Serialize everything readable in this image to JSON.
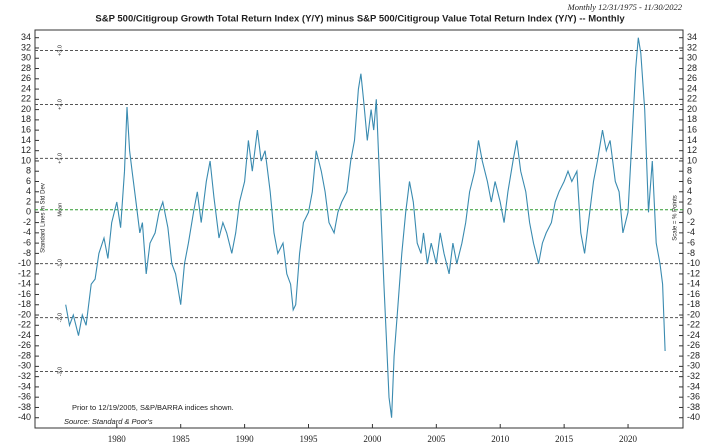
{
  "chart_data": {
    "type": "line",
    "title": "S&P 500/Citigroup Growth Total Return Index (Y/Y) minus S&P 500/Citigroup Value Total Return Index (Y/Y) -- Monthly",
    "subtitle": "Monthly 12/31/1975 - 11/30/2022",
    "y_label_left": "Standard Lines in Std Dev",
    "y_label_right": "Scale = % Points",
    "notes": [
      "Prior to 12/19/2005, S&P/BARRA indices shown.",
      "Source: Standard & Poor's"
    ],
    "xlim": [
      1973.6,
      2024.3
    ],
    "xticks": [
      1980,
      1985,
      1990,
      1995,
      2000,
      2005,
      2010,
      2015,
      2020
    ],
    "ylim": [
      -42,
      35.5
    ],
    "yticks": [
      -40,
      -38,
      -36,
      -34,
      -32,
      -30,
      -28,
      -26,
      -24,
      -22,
      -20,
      -18,
      -16,
      -14,
      -12,
      -10,
      -8,
      -6,
      -4,
      -2,
      0,
      2,
      4,
      6,
      8,
      10,
      12,
      14,
      16,
      18,
      20,
      22,
      24,
      26,
      28,
      30,
      32,
      34
    ],
    "reference_lines": [
      {
        "value": 31.5,
        "label": "+3.0",
        "color": "#555555"
      },
      {
        "value": 21,
        "label": "+2.0",
        "color": "#555555"
      },
      {
        "value": 10.5,
        "label": "+1.0",
        "color": "#555555"
      },
      {
        "value": 0.5,
        "label": "Mean",
        "color": "#2e9a2e"
      },
      {
        "value": -10,
        "label": "-1.0",
        "color": "#555555"
      },
      {
        "value": -20.5,
        "label": "-2.0",
        "color": "#555555"
      },
      {
        "value": -31,
        "label": "-3.0",
        "color": "#555555"
      }
    ],
    "series": [
      {
        "name": "Growth minus Value",
        "color": "#3a8bb0",
        "x": [
          1976.0,
          1976.3,
          1976.6,
          1977.0,
          1977.3,
          1977.6,
          1978.0,
          1978.3,
          1978.6,
          1979.0,
          1979.3,
          1979.6,
          1980.0,
          1980.3,
          1980.6,
          1980.8,
          1981.0,
          1981.2,
          1981.5,
          1981.8,
          1982.0,
          1982.3,
          1982.6,
          1983.0,
          1983.3,
          1983.6,
          1984.0,
          1984.3,
          1984.6,
          1985.0,
          1985.3,
          1985.6,
          1986.0,
          1986.3,
          1986.6,
          1987.0,
          1987.3,
          1987.6,
          1988.0,
          1988.3,
          1988.6,
          1989.0,
          1989.3,
          1989.6,
          1990.0,
          1990.3,
          1990.6,
          1991.0,
          1991.3,
          1991.6,
          1992.0,
          1992.3,
          1992.6,
          1993.0,
          1993.3,
          1993.6,
          1993.8,
          1994.0,
          1994.3,
          1994.6,
          1995.0,
          1995.3,
          1995.6,
          1996.0,
          1996.3,
          1996.6,
          1997.0,
          1997.3,
          1997.6,
          1998.0,
          1998.3,
          1998.6,
          1998.9,
          1999.1,
          1999.3,
          1999.6,
          1999.9,
          2000.1,
          2000.3,
          2000.6,
          2000.9,
          2001.1,
          2001.3,
          2001.5,
          2001.7,
          2002.0,
          2002.3,
          2002.6,
          2002.9,
          2003.2,
          2003.5,
          2003.8,
          2004.0,
          2004.3,
          2004.6,
          2005.0,
          2005.3,
          2005.6,
          2006.0,
          2006.3,
          2006.6,
          2007.0,
          2007.3,
          2007.6,
          2008.0,
          2008.3,
          2008.6,
          2009.0,
          2009.3,
          2009.6,
          2010.0,
          2010.3,
          2010.6,
          2011.0,
          2011.3,
          2011.6,
          2012.0,
          2012.3,
          2012.6,
          2013.0,
          2013.3,
          2013.6,
          2014.0,
          2014.3,
          2014.6,
          2015.0,
          2015.3,
          2015.6,
          2016.0,
          2016.3,
          2016.6,
          2017.0,
          2017.3,
          2017.6,
          2018.0,
          2018.3,
          2018.6,
          2019.0,
          2019.3,
          2019.6,
          2020.0,
          2020.3,
          2020.6,
          2020.8,
          2021.0,
          2021.3,
          2021.6,
          2021.9,
          2022.2,
          2022.5,
          2022.7,
          2022.9
        ],
        "values": [
          -18,
          -22,
          -20,
          -24,
          -20,
          -22,
          -14,
          -13,
          -8,
          -5,
          -9,
          -2,
          2,
          -3,
          8,
          20.5,
          12,
          8,
          2,
          -4,
          -2,
          -12,
          -6,
          -4,
          0,
          2,
          -3,
          -10,
          -12,
          -18,
          -10,
          -6,
          0,
          4,
          -2,
          6,
          10,
          3,
          -5,
          -2,
          -4,
          -8,
          -4,
          2,
          6,
          14,
          8,
          16,
          10,
          12,
          4,
          -4,
          -8,
          -6,
          -12,
          -14,
          -19,
          -18,
          -8,
          -2,
          0,
          4,
          12,
          8,
          4,
          -2,
          -4,
          0,
          2,
          4,
          10,
          14,
          24,
          27,
          22,
          14,
          20,
          16,
          22,
          4,
          -14,
          -25,
          -36,
          -40,
          -28,
          -18,
          -8,
          0,
          6,
          2,
          -6,
          -8,
          -4,
          -10,
          -6,
          -10,
          -4,
          -8,
          -12,
          -6,
          -10,
          -6,
          -2,
          4,
          8,
          14,
          10,
          6,
          2,
          6,
          2,
          -2,
          4,
          10,
          14,
          8,
          4,
          -2,
          -6,
          -10,
          -6,
          -4,
          -2,
          2,
          4,
          6,
          8,
          6,
          8,
          -4,
          -8,
          0,
          6,
          10,
          16,
          12,
          14,
          6,
          4,
          -4,
          0,
          14,
          28,
          34,
          31,
          20,
          0,
          10,
          -6,
          -10,
          -14,
          -27
        ]
      }
    ]
  }
}
